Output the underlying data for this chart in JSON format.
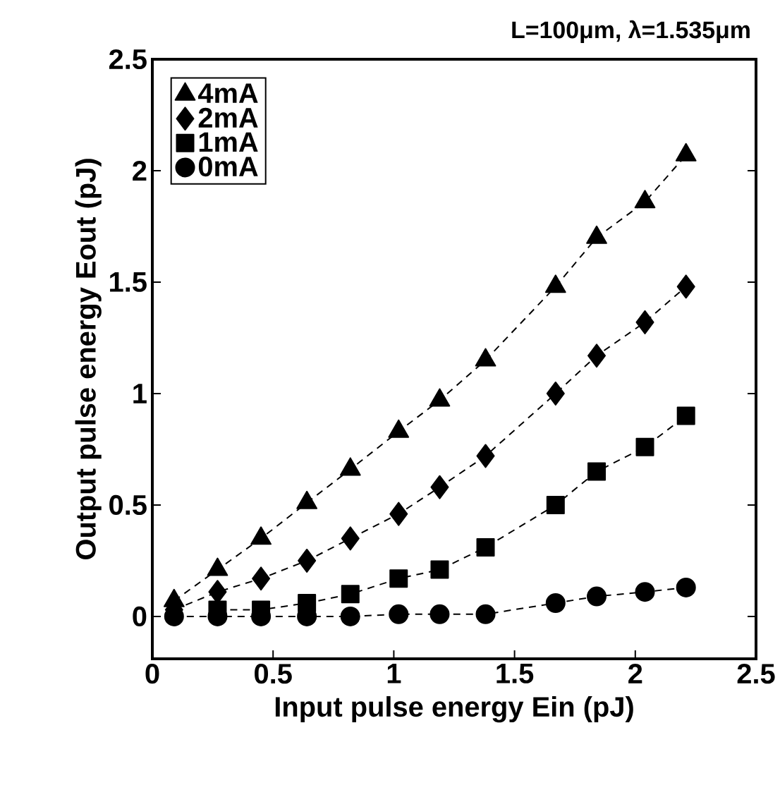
{
  "chart_data": {
    "type": "line",
    "title": "L=100μm, λ=1.535μm",
    "xlabel": "Input pulse energy Ein (pJ)",
    "ylabel": "Output pulse energy Eout (pJ)",
    "xlim": [
      0,
      2.5
    ],
    "ylim": [
      -0.19,
      2.5
    ],
    "xticks": [
      0,
      0.5,
      1,
      1.5,
      2,
      2.5
    ],
    "yticks": [
      0,
      0.5,
      1,
      1.5,
      2,
      2.5
    ],
    "x": [
      0.09,
      0.27,
      0.45,
      0.64,
      0.82,
      1.02,
      1.19,
      1.38,
      1.67,
      1.84,
      2.04,
      2.21
    ],
    "legend": "top left",
    "grid": false,
    "line_style": "dashed",
    "series": [
      {
        "name": "4mA",
        "color": "#000000",
        "marker": "triangle",
        "values": [
          0.07,
          0.21,
          0.35,
          0.51,
          0.66,
          0.83,
          0.97,
          1.15,
          1.48,
          1.7,
          1.86,
          2.07
        ]
      },
      {
        "name": "2mA",
        "color": "#000000",
        "marker": "diamond",
        "values": [
          0.03,
          0.11,
          0.17,
          0.25,
          0.35,
          0.46,
          0.58,
          0.72,
          1.0,
          1.17,
          1.32,
          1.48
        ]
      },
      {
        "name": "1mA",
        "color": "#000000",
        "marker": "square",
        "values": [
          null,
          0.03,
          0.03,
          0.06,
          0.1,
          0.17,
          0.21,
          0.31,
          0.5,
          0.65,
          0.76,
          0.9
        ]
      },
      {
        "name": "0mA",
        "color": "#000000",
        "marker": "circle",
        "values": [
          0,
          0,
          0,
          0,
          0,
          0.01,
          0.01,
          0.01,
          0.06,
          0.09,
          0.11,
          0.13
        ]
      }
    ]
  }
}
